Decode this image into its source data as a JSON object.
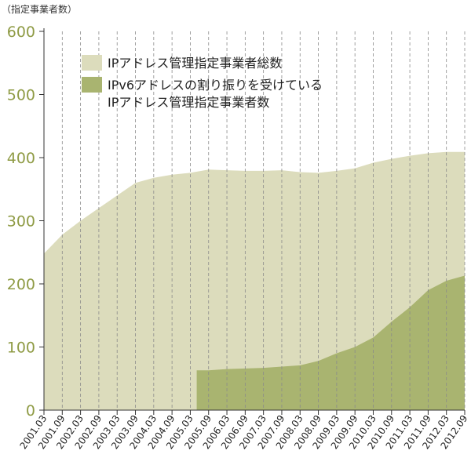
{
  "chart_data": {
    "type": "area",
    "unit_label": "（指定事業者数）",
    "ylim": [
      0,
      600
    ],
    "yticks": [
      "0",
      "100",
      "200",
      "300",
      "400",
      "500",
      "600"
    ],
    "ytick_values": [
      0,
      100,
      200,
      300,
      400,
      500,
      600
    ],
    "grid": "vertical-dashed",
    "legend_position": "top-left",
    "categories": [
      "2001.03",
      "2001.09",
      "2002.03",
      "2002.09",
      "2003.03",
      "2003.09",
      "2004.03",
      "2004.09",
      "2005.03",
      "2005.09",
      "2006.03",
      "2006.09",
      "2007.03",
      "2007.09",
      "2008.03",
      "2008.09",
      "2009.03",
      "2009.09",
      "2010.03",
      "2010.09",
      "2011.03",
      "2011.09",
      "2012.03",
      "2012.09"
    ],
    "series": [
      {
        "name": "IPアドレス管理指定事業者総数",
        "color": "#dcdcbc",
        "values": [
          248,
          278,
          300,
          320,
          340,
          360,
          368,
          373,
          376,
          381,
          380,
          379,
          379,
          380,
          377,
          376,
          379,
          383,
          392,
          398,
          403,
          407,
          409,
          409
        ]
      },
      {
        "name_lines": [
          "IPv6アドレスの割り振りを受けている",
          "IPアドレス管理指定事業者数"
        ],
        "color": "#a9b470",
        "values": [
          0,
          0,
          0,
          0,
          0,
          0,
          0,
          0,
          0,
          63,
          65,
          66,
          67,
          69,
          71,
          78,
          90,
          100,
          115,
          140,
          163,
          190,
          205,
          213
        ]
      }
    ]
  }
}
